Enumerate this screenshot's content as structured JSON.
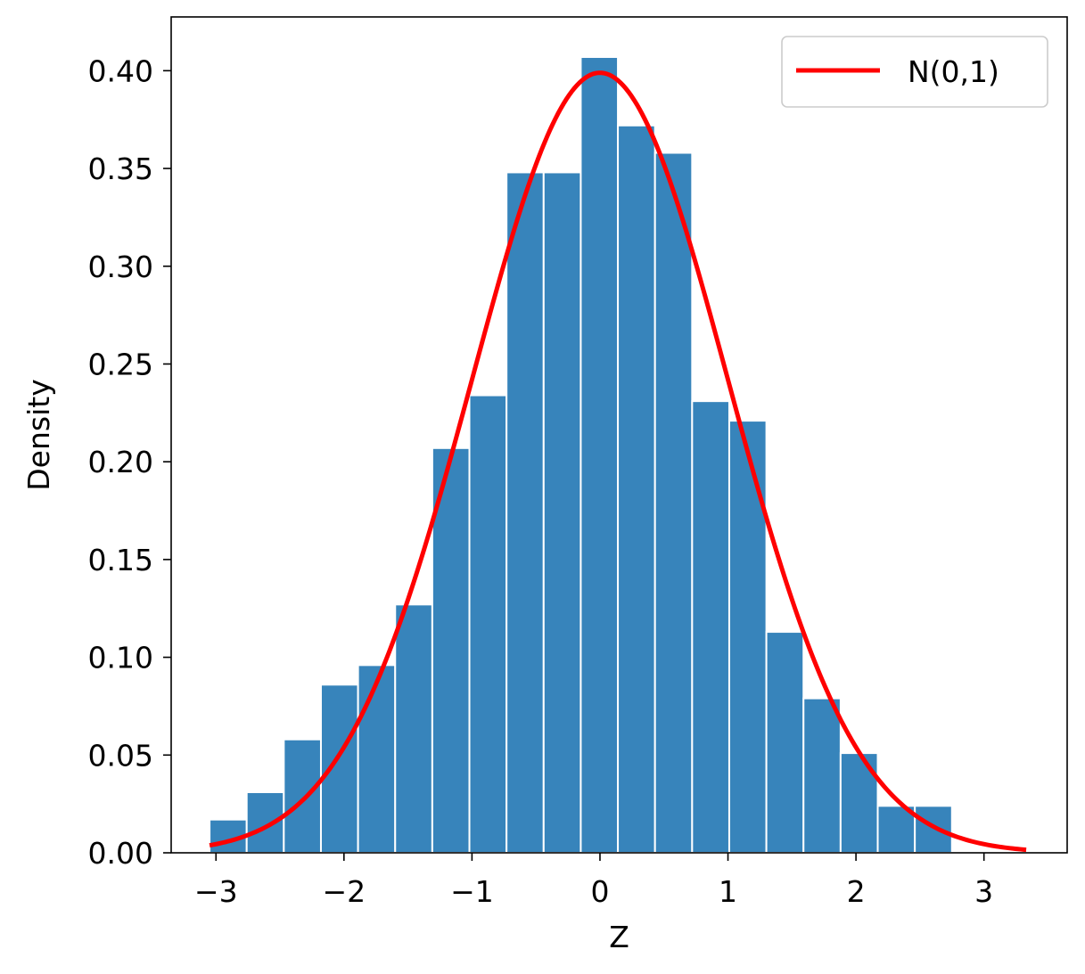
{
  "chart_data": {
    "type": "bar",
    "title": "",
    "xlabel": "Z",
    "ylabel": "Density",
    "xlim": [
      -3.35,
      3.65
    ],
    "ylim": [
      0,
      0.4275
    ],
    "xticks": [
      -3,
      -2,
      -1,
      0,
      1,
      2,
      3
    ],
    "xtick_labels": [
      "−3",
      "−2",
      "−1",
      "0",
      "1",
      "2",
      "3"
    ],
    "yticks": [
      0,
      0.05,
      0.1,
      0.15,
      0.2,
      0.25,
      0.3,
      0.35,
      0.4
    ],
    "ytick_labels": [
      "0.00",
      "0.05",
      "0.10",
      "0.15",
      "0.20",
      "0.25",
      "0.30",
      "0.35",
      "0.40"
    ],
    "bins": {
      "edges": [
        -3.05,
        -2.76,
        -2.47,
        -2.18,
        -1.89,
        -1.6,
        -1.31,
        -1.02,
        -0.73,
        -0.44,
        -0.15,
        0.14,
        0.43,
        0.72,
        1.01,
        1.3,
        1.59,
        1.88,
        2.17,
        2.46,
        2.75,
        3.04,
        3.33
      ],
      "values": [
        0.017,
        0.031,
        0.058,
        0.086,
        0.096,
        0.127,
        0.207,
        0.234,
        0.348,
        0.348,
        0.407,
        0.372,
        0.358,
        0.231,
        0.221,
        0.113,
        0.079,
        0.051,
        0.024,
        0.024,
        0.0,
        0.0
      ],
      "color": "#3784bb"
    },
    "curve": {
      "name": "N(0,1)",
      "color": "#ff0000",
      "x_range": [
        -3.05,
        3.33
      ],
      "mean": 0,
      "sd": 1
    },
    "grid": false,
    "legend_position": "top-right"
  }
}
